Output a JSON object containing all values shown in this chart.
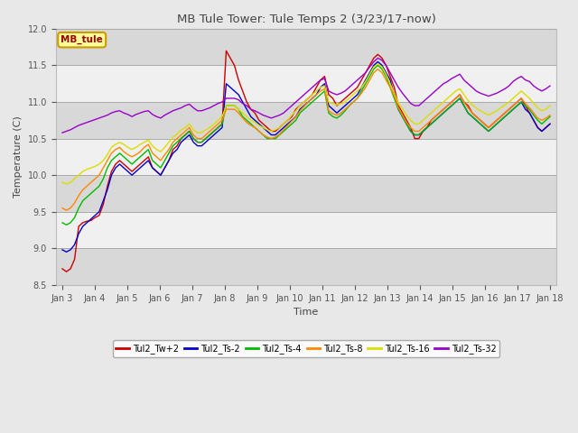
{
  "title": "MB Tule Tower: Tule Temps 2 (3/23/17-now)",
  "xlabel": "Time",
  "ylabel": "Temperature (C)",
  "ylim": [
    8.5,
    12.0
  ],
  "background_color": "#e8e8e8",
  "plot_bg_color": "#e8e8e8",
  "series_colors": {
    "Tul2_Tw+2": "#cc0000",
    "Tul2_Ts-2": "#0000cc",
    "Tul2_Ts-4": "#00bb00",
    "Tul2_Ts-8": "#ff8800",
    "Tul2_Ts-16": "#dddd00",
    "Tul2_Ts-32": "#9900cc"
  },
  "xtick_labels": [
    "Jan 3",
    "Jan 4",
    "Jan 5",
    "Jan 6",
    "Jan 7",
    "Jan 8",
    "Jan 9",
    "Jan 10",
    "Jan 11",
    "Jan 12",
    "Jan 13",
    "Jan 14",
    "Jan 15",
    "Jan 16",
    "Jan 17",
    "Jan 18"
  ],
  "ytick_values": [
    8.5,
    9.0,
    9.5,
    10.0,
    10.5,
    11.0,
    11.5,
    12.0
  ],
  "series": {
    "Tul2_Tw+2": [
      8.72,
      8.68,
      8.72,
      8.85,
      9.3,
      9.35,
      9.37,
      9.38,
      9.42,
      9.45,
      9.6,
      9.85,
      10.05,
      10.15,
      10.2,
      10.15,
      10.1,
      10.05,
      10.1,
      10.15,
      10.2,
      10.25,
      10.1,
      10.05,
      10.0,
      10.1,
      10.2,
      10.35,
      10.4,
      10.5,
      10.55,
      10.6,
      10.5,
      10.45,
      10.45,
      10.5,
      10.55,
      10.6,
      10.65,
      10.7,
      11.7,
      11.6,
      11.5,
      11.3,
      11.15,
      11.0,
      10.9,
      10.85,
      10.75,
      10.7,
      10.65,
      10.6,
      10.6,
      10.65,
      10.7,
      10.75,
      10.8,
      10.9,
      10.95,
      11.0,
      11.05,
      11.1,
      11.2,
      11.3,
      11.35,
      11.1,
      11.05,
      10.95,
      11.0,
      11.05,
      11.1,
      11.15,
      11.2,
      11.3,
      11.4,
      11.5,
      11.6,
      11.65,
      11.6,
      11.5,
      11.35,
      11.2,
      10.95,
      10.85,
      10.75,
      10.65,
      10.5,
      10.5,
      10.6,
      10.65,
      10.75,
      10.8,
      10.85,
      10.9,
      10.95,
      11.0,
      11.05,
      11.1,
      11.0,
      10.95,
      10.85,
      10.8,
      10.75,
      10.7,
      10.65,
      10.7,
      10.75,
      10.8,
      10.85,
      10.9,
      10.95,
      11.0,
      11.05,
      10.95,
      10.85,
      10.75,
      10.65,
      10.6,
      10.65,
      10.7
    ],
    "Tul2_Ts-2": [
      8.98,
      8.95,
      8.98,
      9.05,
      9.2,
      9.3,
      9.35,
      9.4,
      9.45,
      9.5,
      9.65,
      9.8,
      10.0,
      10.1,
      10.15,
      10.1,
      10.05,
      10.0,
      10.05,
      10.1,
      10.15,
      10.2,
      10.1,
      10.05,
      10.0,
      10.1,
      10.2,
      10.3,
      10.35,
      10.45,
      10.5,
      10.55,
      10.45,
      10.4,
      10.4,
      10.45,
      10.5,
      10.55,
      10.6,
      10.65,
      11.25,
      11.2,
      11.15,
      11.1,
      11.0,
      10.9,
      10.8,
      10.75,
      10.7,
      10.65,
      10.6,
      10.55,
      10.55,
      10.6,
      10.65,
      10.7,
      10.75,
      10.8,
      10.9,
      10.95,
      11.0,
      11.05,
      11.1,
      11.2,
      11.25,
      10.95,
      10.9,
      10.85,
      10.9,
      10.95,
      11.0,
      11.05,
      11.1,
      11.2,
      11.3,
      11.4,
      11.5,
      11.55,
      11.5,
      11.4,
      11.3,
      11.1,
      10.9,
      10.8,
      10.7,
      10.6,
      10.55,
      10.55,
      10.6,
      10.65,
      10.7,
      10.75,
      10.8,
      10.85,
      10.9,
      10.95,
      11.0,
      11.05,
      10.95,
      10.85,
      10.8,
      10.75,
      10.7,
      10.65,
      10.6,
      10.65,
      10.7,
      10.75,
      10.8,
      10.85,
      10.9,
      10.95,
      11.0,
      10.9,
      10.85,
      10.75,
      10.65,
      10.6,
      10.65,
      10.7
    ],
    "Tul2_Ts-4": [
      9.35,
      9.32,
      9.35,
      9.42,
      9.55,
      9.65,
      9.7,
      9.75,
      9.8,
      9.85,
      9.95,
      10.1,
      10.2,
      10.25,
      10.3,
      10.25,
      10.2,
      10.15,
      10.2,
      10.25,
      10.3,
      10.35,
      10.2,
      10.15,
      10.1,
      10.2,
      10.3,
      10.4,
      10.45,
      10.5,
      10.55,
      10.6,
      10.5,
      10.45,
      10.45,
      10.5,
      10.55,
      10.6,
      10.65,
      10.7,
      10.95,
      10.95,
      10.95,
      10.9,
      10.8,
      10.75,
      10.7,
      10.65,
      10.6,
      10.55,
      10.5,
      10.5,
      10.5,
      10.55,
      10.6,
      10.65,
      10.7,
      10.75,
      10.85,
      10.9,
      10.95,
      11.0,
      11.05,
      11.1,
      11.15,
      10.85,
      10.8,
      10.78,
      10.82,
      10.88,
      10.95,
      11.0,
      11.05,
      11.15,
      11.25,
      11.35,
      11.45,
      11.5,
      11.45,
      11.35,
      11.2,
      11.05,
      10.9,
      10.8,
      10.7,
      10.6,
      10.55,
      10.55,
      10.6,
      10.65,
      10.7,
      10.75,
      10.8,
      10.85,
      10.9,
      10.95,
      11.0,
      11.05,
      10.95,
      10.85,
      10.8,
      10.75,
      10.7,
      10.65,
      10.6,
      10.65,
      10.7,
      10.75,
      10.8,
      10.85,
      10.9,
      10.95,
      11.0,
      10.95,
      10.9,
      10.82,
      10.75,
      10.7,
      10.75,
      10.8
    ],
    "Tul2_Ts-8": [
      9.55,
      9.52,
      9.55,
      9.62,
      9.72,
      9.8,
      9.85,
      9.9,
      9.95,
      10.0,
      10.1,
      10.2,
      10.3,
      10.35,
      10.38,
      10.32,
      10.28,
      10.25,
      10.28,
      10.32,
      10.38,
      10.42,
      10.3,
      10.25,
      10.2,
      10.28,
      10.35,
      10.45,
      10.5,
      10.55,
      10.6,
      10.65,
      10.55,
      10.5,
      10.5,
      10.55,
      10.6,
      10.65,
      10.7,
      10.75,
      10.9,
      10.9,
      10.9,
      10.85,
      10.78,
      10.72,
      10.68,
      10.65,
      10.6,
      10.55,
      10.52,
      10.5,
      10.52,
      10.56,
      10.62,
      10.68,
      10.74,
      10.8,
      10.88,
      10.94,
      11.0,
      11.05,
      11.1,
      11.15,
      11.18,
      10.88,
      10.84,
      10.82,
      10.85,
      10.9,
      10.95,
      11.0,
      11.05,
      11.12,
      11.2,
      11.3,
      11.4,
      11.45,
      11.4,
      11.3,
      11.2,
      11.08,
      10.92,
      10.82,
      10.72,
      10.65,
      10.6,
      10.6,
      10.65,
      10.7,
      10.75,
      10.8,
      10.85,
      10.9,
      10.95,
      11.0,
      11.05,
      11.1,
      11.0,
      10.92,
      10.85,
      10.8,
      10.75,
      10.7,
      10.65,
      10.7,
      10.75,
      10.8,
      10.85,
      10.9,
      10.95,
      11.0,
      11.05,
      10.98,
      10.92,
      10.85,
      10.78,
      10.75,
      10.78,
      10.82
    ],
    "Tul2_Ts-16": [
      9.9,
      9.88,
      9.9,
      9.95,
      10.0,
      10.05,
      10.08,
      10.1,
      10.12,
      10.15,
      10.2,
      10.28,
      10.38,
      10.42,
      10.45,
      10.42,
      10.38,
      10.35,
      10.38,
      10.42,
      10.45,
      10.48,
      10.4,
      10.35,
      10.32,
      10.38,
      10.45,
      10.52,
      10.56,
      10.62,
      10.65,
      10.7,
      10.62,
      10.58,
      10.58,
      10.62,
      10.65,
      10.7,
      10.75,
      10.8,
      10.95,
      10.95,
      10.95,
      10.9,
      10.85,
      10.8,
      10.75,
      10.72,
      10.68,
      10.65,
      10.62,
      10.6,
      10.62,
      10.65,
      10.7,
      10.75,
      10.82,
      10.88,
      10.95,
      11.0,
      11.05,
      11.1,
      11.15,
      11.2,
      11.22,
      11.0,
      10.98,
      10.96,
      10.98,
      11.0,
      11.05,
      11.1,
      11.15,
      11.2,
      11.28,
      11.38,
      11.48,
      11.52,
      11.48,
      11.38,
      11.25,
      11.12,
      10.98,
      10.9,
      10.82,
      10.75,
      10.7,
      10.7,
      10.75,
      10.8,
      10.85,
      10.9,
      10.95,
      11.0,
      11.05,
      11.1,
      11.15,
      11.18,
      11.1,
      11.02,
      10.96,
      10.92,
      10.88,
      10.85,
      10.82,
      10.85,
      10.88,
      10.92,
      10.96,
      11.0,
      11.05,
      11.1,
      11.15,
      11.1,
      11.05,
      10.98,
      10.92,
      10.88,
      10.9,
      10.95
    ],
    "Tul2_Ts-32": [
      10.58,
      10.6,
      10.62,
      10.65,
      10.68,
      10.7,
      10.72,
      10.74,
      10.76,
      10.78,
      10.8,
      10.82,
      10.85,
      10.87,
      10.88,
      10.85,
      10.83,
      10.8,
      10.83,
      10.85,
      10.87,
      10.88,
      10.83,
      10.8,
      10.78,
      10.82,
      10.85,
      10.88,
      10.9,
      10.92,
      10.95,
      10.97,
      10.92,
      10.88,
      10.88,
      10.9,
      10.92,
      10.95,
      10.98,
      11.0,
      11.05,
      11.05,
      11.05,
      11.03,
      10.98,
      10.95,
      10.9,
      10.88,
      10.85,
      10.82,
      10.8,
      10.78,
      10.8,
      10.82,
      10.85,
      10.9,
      10.95,
      11.0,
      11.05,
      11.1,
      11.15,
      11.2,
      11.25,
      11.3,
      11.32,
      11.15,
      11.12,
      11.1,
      11.12,
      11.15,
      11.2,
      11.25,
      11.3,
      11.35,
      11.4,
      11.48,
      11.55,
      11.6,
      11.57,
      11.5,
      11.4,
      11.3,
      11.2,
      11.12,
      11.05,
      10.98,
      10.95,
      10.95,
      11.0,
      11.05,
      11.1,
      11.15,
      11.2,
      11.25,
      11.28,
      11.32,
      11.35,
      11.38,
      11.3,
      11.25,
      11.2,
      11.15,
      11.12,
      11.1,
      11.08,
      11.1,
      11.12,
      11.15,
      11.18,
      11.22,
      11.28,
      11.32,
      11.35,
      11.3,
      11.28,
      11.22,
      11.18,
      11.15,
      11.18,
      11.22
    ]
  }
}
